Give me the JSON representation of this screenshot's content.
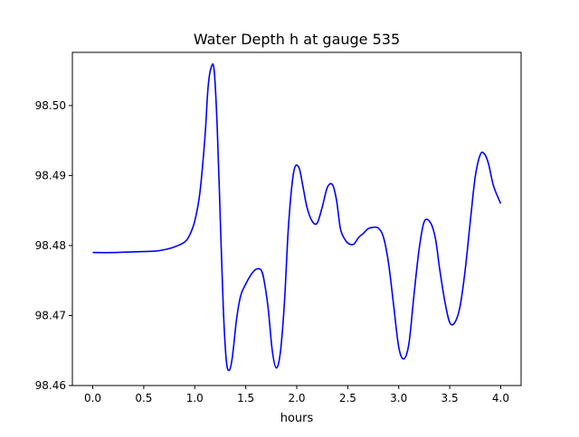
{
  "chart_data": {
    "type": "line",
    "title": "Water Depth h at gauge 535",
    "xlabel": "hours",
    "ylabel": "",
    "xlim": [
      -0.2,
      4.2
    ],
    "ylim": [
      98.46,
      98.5076
    ],
    "grid": false,
    "line_color": "#0000ff",
    "x_ticks": [
      0.0,
      0.5,
      1.0,
      1.5,
      2.0,
      2.5,
      3.0,
      3.5,
      4.0
    ],
    "x_tick_labels": [
      "0.0",
      "0.5",
      "1.0",
      "1.5",
      "2.0",
      "2.5",
      "3.0",
      "3.5",
      "4.0"
    ],
    "y_ticks": [
      98.46,
      98.47,
      98.48,
      98.49,
      98.5
    ],
    "y_tick_labels": [
      "98.46",
      "98.47",
      "98.48",
      "98.49",
      "98.50"
    ],
    "series": [
      {
        "x": [
          0.0,
          0.2,
          0.4,
          0.6,
          0.7,
          0.8,
          0.9,
          0.95,
          1.0,
          1.05,
          1.1,
          1.13,
          1.16,
          1.19,
          1.22,
          1.25,
          1.28,
          1.31,
          1.34,
          1.37,
          1.41,
          1.45,
          1.5,
          1.55,
          1.6,
          1.65,
          1.68,
          1.72,
          1.76,
          1.8,
          1.84,
          1.88,
          1.92,
          1.97,
          2.02,
          2.06,
          2.1,
          2.15,
          2.2,
          2.25,
          2.3,
          2.35,
          2.39,
          2.43,
          2.48,
          2.52,
          2.56,
          2.61,
          2.65,
          2.7,
          2.75,
          2.8,
          2.85,
          2.9,
          2.95,
          3.0,
          3.05,
          3.1,
          3.15,
          3.2,
          3.25,
          3.31,
          3.36,
          3.4,
          3.45,
          3.5,
          3.55,
          3.6,
          3.65,
          3.7,
          3.75,
          3.8,
          3.84,
          3.88,
          3.93,
          4.0
        ],
        "y": [
          98.479,
          98.479,
          98.4791,
          98.4792,
          98.4794,
          98.4798,
          98.4805,
          98.4815,
          98.4835,
          98.4875,
          98.4955,
          98.5025,
          98.5054,
          98.5051,
          98.497,
          98.484,
          98.471,
          98.4635,
          98.4622,
          98.4642,
          98.4695,
          98.4728,
          98.4745,
          98.4758,
          98.4766,
          98.4765,
          98.475,
          98.471,
          98.465,
          98.4625,
          98.4648,
          98.472,
          98.483,
          98.4905,
          98.4912,
          98.4885,
          98.4855,
          98.4835,
          98.4832,
          98.4855,
          98.4883,
          98.4887,
          98.4865,
          98.4823,
          98.4807,
          98.4802,
          98.4802,
          98.4812,
          98.4817,
          98.4824,
          98.4826,
          98.4825,
          98.4812,
          98.4775,
          98.4715,
          98.4655,
          98.4638,
          98.466,
          98.473,
          98.4795,
          98.4834,
          98.4833,
          98.481,
          98.4768,
          98.4722,
          98.469,
          98.469,
          98.4712,
          98.4763,
          98.4832,
          98.4898,
          98.493,
          98.4931,
          98.4917,
          98.4885,
          98.486
        ]
      }
    ]
  }
}
